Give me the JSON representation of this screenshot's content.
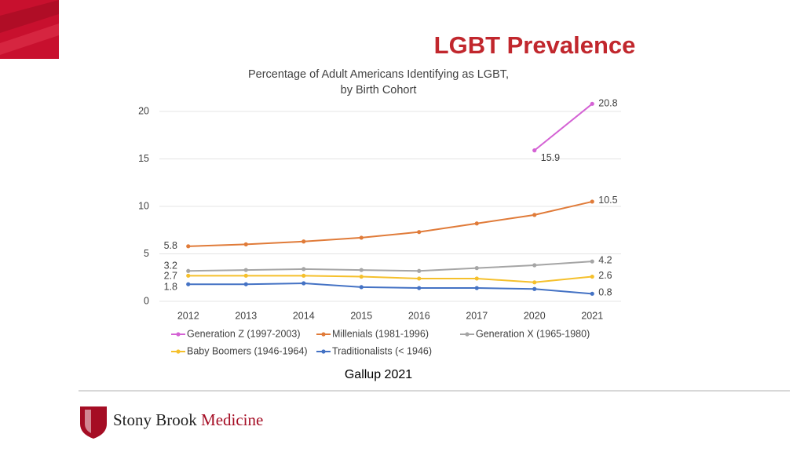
{
  "slide_title": "LGBT Prevalence",
  "chart_data": {
    "type": "line",
    "title": [
      "Percentage of Adult Americans Identifying as LGBT,",
      "by Birth Cohort"
    ],
    "categories": [
      "2012",
      "2013",
      "2014",
      "2015",
      "2016",
      "2017",
      "2020",
      "2021"
    ],
    "series": [
      {
        "name": "Generation Z (1997-2003)",
        "color": "#d462d4",
        "values": [
          null,
          null,
          null,
          null,
          null,
          null,
          15.9,
          20.8
        ]
      },
      {
        "name": "Millenials (1981-1996)",
        "color": "#e07b39",
        "values": [
          5.8,
          6.0,
          6.3,
          6.7,
          7.3,
          8.2,
          9.1,
          10.5
        ]
      },
      {
        "name": "Generation X (1965-1980)",
        "color": "#a5a5a5",
        "values": [
          3.2,
          3.3,
          3.4,
          3.3,
          3.2,
          3.5,
          3.8,
          4.2
        ]
      },
      {
        "name": "Baby Boomers (1946-1964)",
        "color": "#f5c02c",
        "values": [
          2.7,
          2.7,
          2.7,
          2.6,
          2.4,
          2.4,
          2.0,
          2.6
        ]
      },
      {
        "name": "Traditionalists (< 1946)",
        "color": "#4472c4",
        "values": [
          1.8,
          1.8,
          1.9,
          1.5,
          1.4,
          1.4,
          1.3,
          0.8
        ]
      }
    ],
    "ylim": [
      0,
      22
    ],
    "yticks": [
      0,
      5,
      10,
      15,
      20
    ],
    "grid": true,
    "legend": "bottom"
  },
  "source": "Gallup 2021",
  "logo": {
    "name": "Stony Brook",
    "suffix": "Medicine"
  }
}
